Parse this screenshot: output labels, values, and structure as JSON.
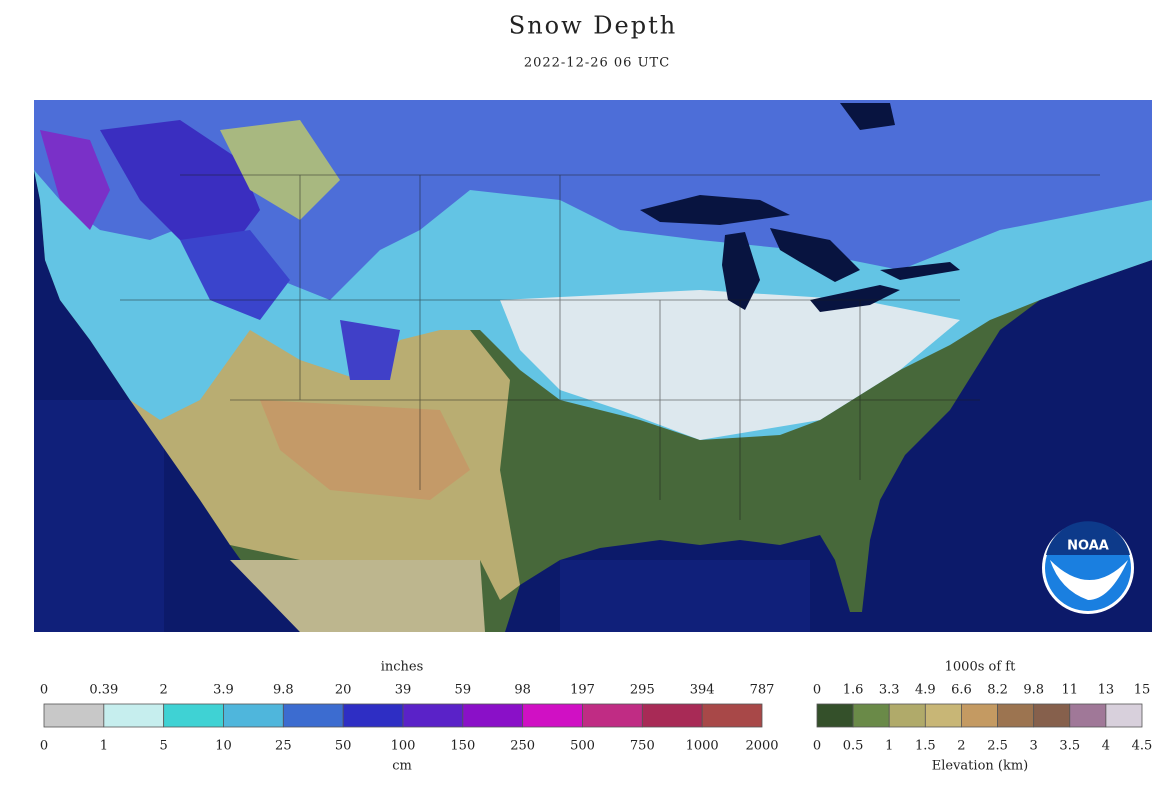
{
  "header": {
    "title": "Snow Depth",
    "subtitle": "2022-12-26 06 UTC"
  },
  "map": {
    "logo": "NOAA"
  },
  "snow_legend": {
    "top_unit": "inches",
    "top_labels": [
      "0",
      "0.39",
      "2",
      "3.9",
      "9.8",
      "20",
      "39",
      "59",
      "98",
      "197",
      "295",
      "394",
      "787"
    ],
    "bottom_labels": [
      "0",
      "1",
      "5",
      "10",
      "25",
      "50",
      "100",
      "150",
      "250",
      "500",
      "750",
      "1000",
      "2000"
    ],
    "bottom_unit": "cm",
    "colors": [
      "#c8c8c8",
      "#c6eeee",
      "#3fd2d4",
      "#4fb6dc",
      "#3c6cd0",
      "#2e2ec4",
      "#5a22c8",
      "#8a10c8",
      "#d010c4",
      "#c02c84",
      "#a82a56",
      "#a84848"
    ]
  },
  "elevation_legend": {
    "top_unit": "1000s of ft",
    "top_labels": [
      "0",
      "1.6",
      "3.3",
      "4.9",
      "6.6",
      "8.2",
      "9.8",
      "11",
      "13",
      "15"
    ],
    "bottom_labels": [
      "0",
      "0.5",
      "1",
      "1.5",
      "2",
      "2.5",
      "3",
      "3.5",
      "4",
      "4.5"
    ],
    "bottom_title": "Elevation (km)",
    "colors": [
      "#34502a",
      "#6a8a48",
      "#b0aa6a",
      "#c8b676",
      "#c49a62",
      "#9c7450",
      "#86604c",
      "#a07898",
      "#d8d0dc"
    ]
  }
}
